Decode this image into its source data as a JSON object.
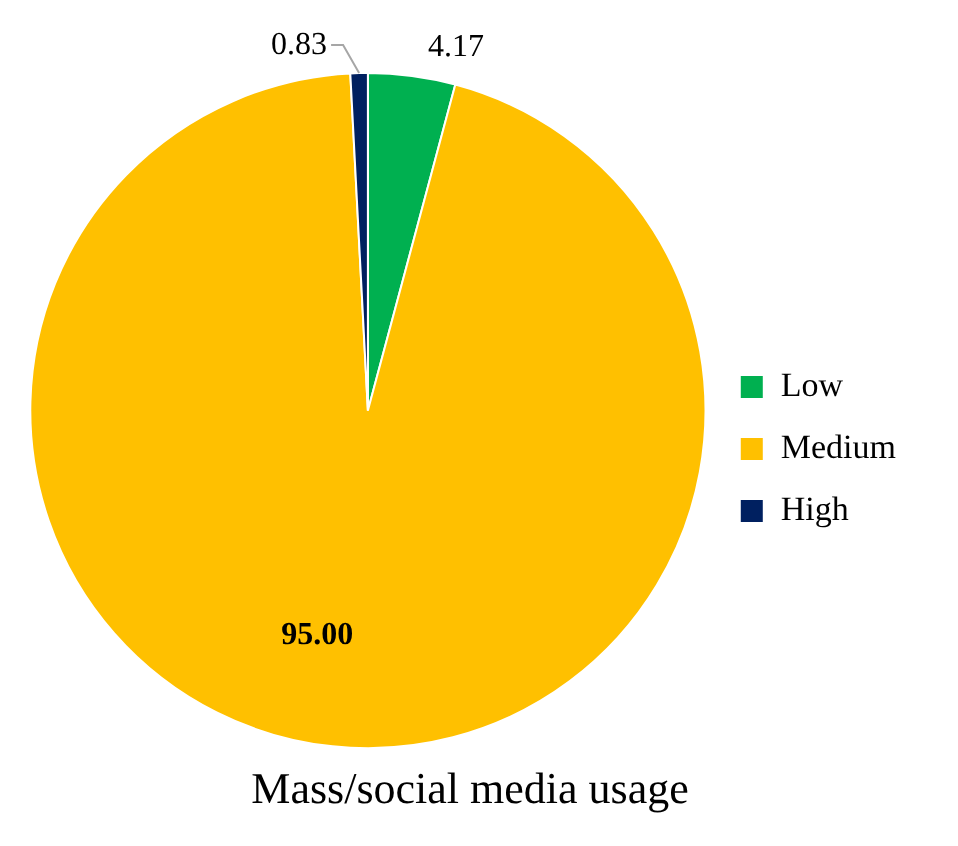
{
  "chart_data": {
    "type": "pie",
    "title": "Mass/social media usage",
    "categories": [
      "Low",
      "Medium",
      "High"
    ],
    "values": [
      4.17,
      95.0,
      0.83
    ],
    "value_labels": [
      "4.17",
      "95.00",
      "0.83"
    ],
    "colors": [
      "#00b050",
      "#ffc000",
      "#002060"
    ],
    "legend": "right"
  }
}
